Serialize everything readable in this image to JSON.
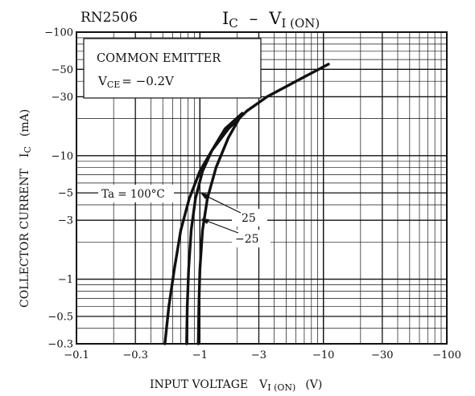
{
  "chart_data": {
    "type": "line",
    "title_left": "RN2506",
    "title_main": "I",
    "title_main_sub": "C",
    "title_dash": "–",
    "title_var": "V",
    "title_var_sub": "I (ON)",
    "xlabel_main": "INPUT VOLTAGE",
    "xlabel_var": "V",
    "xlabel_sub": "I (ON)",
    "xlabel_unit": "(V)",
    "ylabel_main": "COLLECTOR CURRENT",
    "ylabel_var": "I",
    "ylabel_sub": "C",
    "ylabel_unit": "(mA)",
    "xscale": "log",
    "yscale": "log",
    "xlim": [
      -0.1,
      -100
    ],
    "ylim": [
      -0.3,
      -100
    ],
    "grid": true,
    "x_ticks": [
      {
        "v": -0.1,
        "label": "−0.1"
      },
      {
        "v": -0.3,
        "label": "−0.3"
      },
      {
        "v": -1,
        "label": "−1"
      },
      {
        "v": -3,
        "label": "−3"
      },
      {
        "v": -10,
        "label": "−10"
      },
      {
        "v": -30,
        "label": "−30"
      },
      {
        "v": -100,
        "label": "−100"
      }
    ],
    "y_ticks": [
      {
        "v": -100,
        "label": "−100"
      },
      {
        "v": -50,
        "label": "−50"
      },
      {
        "v": -30,
        "label": "−30"
      },
      {
        "v": -10,
        "label": "−10"
      },
      {
        "v": -5,
        "label": "−5"
      },
      {
        "v": -3,
        "label": "−3"
      },
      {
        "v": -1,
        "label": "−1"
      },
      {
        "v": -0.5,
        "label": "−0.5"
      },
      {
        "v": -0.3,
        "label": "−0.3"
      }
    ],
    "condition_1": "COMMON EMITTER",
    "condition_2_var": "V",
    "condition_2_sub": "CE",
    "condition_2_val": "= −0.2V",
    "series": [
      {
        "name": "Ta = 100°C",
        "x": [
          -0.52,
          -0.56,
          -0.62,
          -0.7,
          -0.82,
          -1.0,
          -1.25,
          -1.7,
          -2.4,
          -3.5,
          -6.0,
          -11.0
        ],
        "y": [
          -0.3,
          -0.6,
          -1.2,
          -2.5,
          -4.5,
          -7.5,
          -11.0,
          -16.5,
          -23.0,
          -30.0,
          -40.0,
          -55.0
        ]
      },
      {
        "name": "25",
        "x": [
          -0.78,
          -0.79,
          -0.81,
          -0.85,
          -0.92,
          -1.05,
          -1.25,
          -1.6,
          -2.2
        ],
        "y": [
          -0.3,
          -0.6,
          -1.2,
          -2.5,
          -4.5,
          -7.5,
          -11.0,
          -16.5,
          -22.0
        ]
      },
      {
        "name": "−25",
        "x": [
          -0.97,
          -0.98,
          -1.0,
          -1.05,
          -1.15,
          -1.35,
          -1.7,
          -2.2
        ],
        "y": [
          -0.3,
          -0.6,
          -1.2,
          -2.5,
          -4.5,
          -8.0,
          -14.0,
          -22.0
        ]
      }
    ],
    "annotations": {
      "ta100": "Ta = 100°C",
      "t25": "25",
      "tm25": "−25"
    }
  }
}
